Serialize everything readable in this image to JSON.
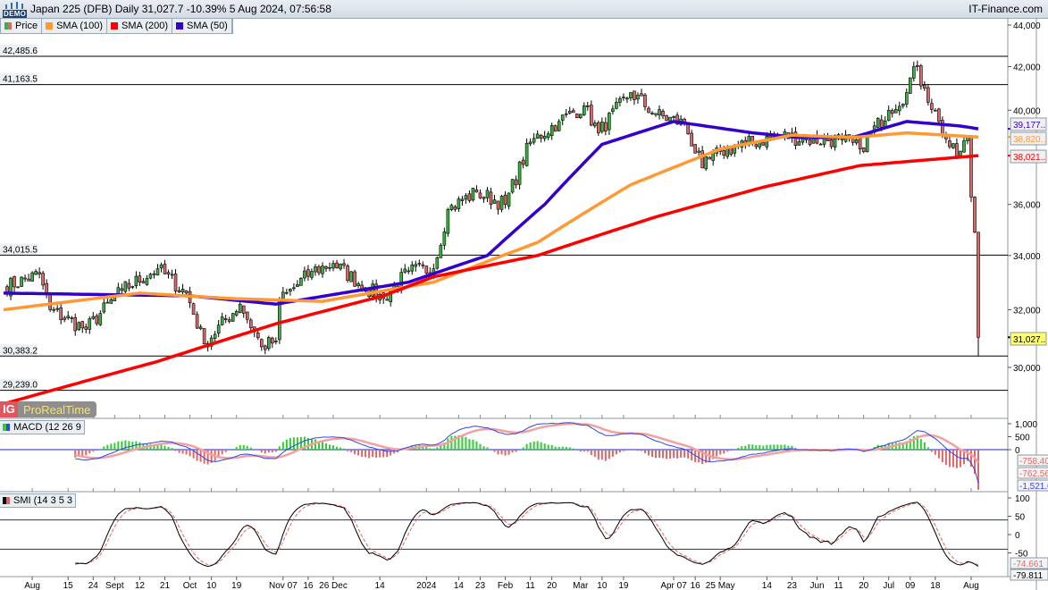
{
  "header": {
    "demo_badge": "DEMO",
    "title": "Japan 225 (DFB) Daily 31,027.7 -10.39% 5 Aug 2024, 07:56:58",
    "brand": "IT-Finance.com"
  },
  "legend": [
    {
      "label": "Price",
      "colors": [
        "#3cb043",
        "#e06666"
      ]
    },
    {
      "label": "SMA (100)",
      "colors": [
        "#ff9933"
      ]
    },
    {
      "label": "SMA (200)",
      "colors": [
        "#ff0000"
      ]
    },
    {
      "label": "SMA (50)",
      "colors": [
        "#3300cc"
      ]
    }
  ],
  "prorealtime": {
    "logo": "IG",
    "name": "ProRealTime"
  },
  "macd_label": "MACD (12 26 9",
  "smi_label": "SMI (14 3 5 3",
  "colors": {
    "up": "#3cb043",
    "down": "#e06666",
    "sma50": "#3300cc",
    "sma100": "#ff9933",
    "sma200": "#ff0000",
    "macd": "#3344ee",
    "signal": "#e06666",
    "hist_pos": "#33cc33",
    "hist_neg": "#e06666"
  },
  "chart_data": [
    {
      "type": "candlestick",
      "scale": "log",
      "ylim": [
        29000,
        44000
      ],
      "yticks": [
        "44,000",
        "42,000",
        "40,000",
        "36,000",
        "34,000",
        "32,000",
        "30,000"
      ],
      "ytick_values": [
        44000,
        42000,
        40000,
        36000,
        34000,
        32000,
        30000
      ],
      "xtick_labels": [
        [
          "2023-08-01",
          "Aug"
        ],
        [
          "2023-08-15",
          "15"
        ],
        [
          "2023-08-24",
          "24"
        ],
        [
          "2023-09-01",
          "Sept"
        ],
        [
          "2023-09-12",
          "12"
        ],
        [
          "2023-09-21",
          "21"
        ],
        [
          "2023-10-02",
          "Oct"
        ],
        [
          "2023-10-10",
          "10"
        ],
        [
          "2023-10-19",
          "19"
        ],
        [
          "2023-11-07",
          "Nov 07"
        ],
        [
          "2023-11-16",
          "16"
        ],
        [
          "2023-11-26",
          "26 Dec"
        ],
        [
          "2023-12-14",
          "14"
        ],
        [
          "2024-01-02",
          "2024"
        ],
        [
          "2024-01-14",
          "14"
        ],
        [
          "2024-01-23",
          "23"
        ],
        [
          "2024-02-01",
          "Feb"
        ],
        [
          "2024-02-11",
          "11"
        ],
        [
          "2024-02-20",
          "20"
        ],
        [
          "2024-03-01",
          "Mar"
        ],
        [
          "2024-03-10",
          "10"
        ],
        [
          "2024-03-19",
          "19"
        ],
        [
          "2024-04-07",
          "Apr 07"
        ],
        [
          "2024-04-16",
          "16"
        ],
        [
          "2024-04-25",
          "25 May"
        ],
        [
          "2024-05-14",
          "14"
        ],
        [
          "2024-05-23",
          "23"
        ],
        [
          "2024-06-01",
          "Jun"
        ],
        [
          "2024-06-11",
          "11"
        ],
        [
          "2024-06-20",
          "20"
        ],
        [
          "2024-07-01",
          "Jul"
        ],
        [
          "2024-07-09",
          "09"
        ],
        [
          "2024-07-18",
          "18"
        ],
        [
          "2024-08-01",
          "Aug"
        ]
      ],
      "close_keypoints": [
        [
          "2023-07-20",
          32800
        ],
        [
          "2023-08-03",
          33300
        ],
        [
          "2023-08-08",
          32000
        ],
        [
          "2023-08-22",
          31300
        ],
        [
          "2023-09-05",
          32700
        ],
        [
          "2023-09-19",
          33500
        ],
        [
          "2023-09-29",
          32600
        ],
        [
          "2023-10-06",
          30800
        ],
        [
          "2023-10-20",
          32200
        ],
        [
          "2023-10-30",
          30700
        ],
        [
          "2023-11-03",
          30900
        ],
        [
          "2023-11-06",
          32300
        ],
        [
          "2023-11-17",
          33400
        ],
        [
          "2023-11-27",
          33700
        ],
        [
          "2023-12-08",
          32800
        ],
        [
          "2023-12-15",
          32400
        ],
        [
          "2023-12-26",
          33400
        ],
        [
          "2024-01-04",
          33500
        ],
        [
          "2024-01-10",
          35800
        ],
        [
          "2024-01-22",
          36500
        ],
        [
          "2024-02-01",
          36000
        ],
        [
          "2024-02-12",
          38600
        ],
        [
          "2024-02-22",
          39500
        ],
        [
          "2024-03-04",
          40200
        ],
        [
          "2024-03-08",
          39000
        ],
        [
          "2024-03-21",
          40800
        ],
        [
          "2024-04-01",
          39800
        ],
        [
          "2024-04-11",
          39400
        ],
        [
          "2024-04-18",
          37500
        ],
        [
          "2024-04-25",
          38200
        ],
        [
          "2024-05-06",
          38500
        ],
        [
          "2024-05-20",
          38900
        ],
        [
          "2024-05-29",
          38700
        ],
        [
          "2024-06-12",
          38700
        ],
        [
          "2024-06-19",
          38300
        ],
        [
          "2024-07-01",
          40000
        ],
        [
          "2024-07-08",
          40800
        ],
        [
          "2024-07-10",
          42000
        ],
        [
          "2024-07-15",
          41000
        ],
        [
          "2024-07-19",
          39500
        ],
        [
          "2024-07-24",
          38400
        ],
        [
          "2024-07-26",
          38000
        ],
        [
          "2024-07-31",
          38800
        ],
        [
          "2024-08-01",
          36300
        ],
        [
          "2024-08-02",
          34900
        ],
        [
          "2024-08-05",
          31027.7
        ]
      ],
      "last_low": 30383.2,
      "series": [
        {
          "name": "SMA (50)",
          "color": "#3300cc",
          "points": [
            [
              "2023-07-20",
              32600
            ],
            [
              "2023-10-01",
              32500
            ],
            [
              "2023-11-03",
              32200
            ],
            [
              "2023-12-26",
              33000
            ],
            [
              "2024-01-25",
              34000
            ],
            [
              "2024-02-16",
              36000
            ],
            [
              "2024-03-11",
              38500
            ],
            [
              "2024-04-08",
              39500
            ],
            [
              "2024-05-08",
              39000
            ],
            [
              "2024-05-27",
              38800
            ],
            [
              "2024-06-17",
              38800
            ],
            [
              "2024-07-08",
              39500
            ],
            [
              "2024-07-29",
              39300
            ],
            [
              "2024-08-05",
              39177
            ]
          ]
        },
        {
          "name": "SMA (100)",
          "color": "#ff9933",
          "points": [
            [
              "2023-07-20",
              32000
            ],
            [
              "2023-09-12",
              32600
            ],
            [
              "2023-10-18",
              32400
            ],
            [
              "2023-11-22",
              32300
            ],
            [
              "2024-01-04",
              33000
            ],
            [
              "2024-02-14",
              34500
            ],
            [
              "2024-03-21",
              36800
            ],
            [
              "2024-04-25",
              38300
            ],
            [
              "2024-05-23",
              38900
            ],
            [
              "2024-06-17",
              38800
            ],
            [
              "2024-07-08",
              39000
            ],
            [
              "2024-08-05",
              38820
            ]
          ]
        },
        {
          "name": "SMA (200)",
          "color": "#ff0000",
          "points": [
            [
              "2023-07-20",
              28800
            ],
            [
              "2023-09-19",
              30200
            ],
            [
              "2023-11-03",
              31500
            ],
            [
              "2023-12-15",
              32500
            ],
            [
              "2024-01-04",
              33200
            ],
            [
              "2024-02-14",
              34000
            ],
            [
              "2024-04-01",
              35500
            ],
            [
              "2024-05-13",
              36700
            ],
            [
              "2024-06-19",
              37600
            ],
            [
              "2024-08-05",
              38021
            ]
          ]
        }
      ],
      "last_value_labels": [
        {
          "text": "39,177..",
          "value": 39177,
          "color": "#3300cc",
          "bg": "#f0f0f0"
        },
        {
          "text": "38,820..",
          "value": 38820,
          "color": "#ff9933",
          "bg": "#f0f0f0"
        },
        {
          "text": "38,021..",
          "value": 38021,
          "color": "#ff0000",
          "bg": "#f0f0f0"
        },
        {
          "text": "31,027..",
          "value": 31027.7,
          "color": "#000000",
          "bg": "#ffff66"
        }
      ],
      "horizontal_lines": [
        {
          "text": "42,485.6",
          "value": 42485.6
        },
        {
          "text": "41,163.5",
          "value": 41163.5
        },
        {
          "text": "34,015.5",
          "value": 34015.5
        },
        {
          "text": "30,383.2",
          "value": 30383.2
        },
        {
          "text": "29,239.0",
          "value": 29239.0
        }
      ]
    },
    {
      "type": "macd",
      "params": [
        12,
        26,
        9
      ],
      "yticks": [
        "1,000",
        "500",
        "0"
      ],
      "ytick_values": [
        1000,
        500,
        0
      ],
      "last_value_labels": [
        {
          "text": "-758.40",
          "value": -758.4,
          "color": "#e06666"
        },
        {
          "text": "-762.56",
          "value": -762.56,
          "color": "#e06666"
        },
        {
          "text": "-1,521.0",
          "value": -1521.0,
          "color": "#3344ee"
        }
      ]
    },
    {
      "type": "smi",
      "params": [
        14,
        3,
        5,
        3
      ],
      "yticks": [
        "100",
        "50",
        "0",
        "-50"
      ],
      "ytick_values": [
        100,
        50,
        0,
        -50
      ],
      "levels": [
        40,
        -40
      ],
      "last_value_labels": [
        {
          "text": "-74.661",
          "value": -74.661,
          "color": "#e06666"
        },
        {
          "text": "-79.811",
          "value": -79.811,
          "color": "#000000"
        }
      ]
    }
  ]
}
